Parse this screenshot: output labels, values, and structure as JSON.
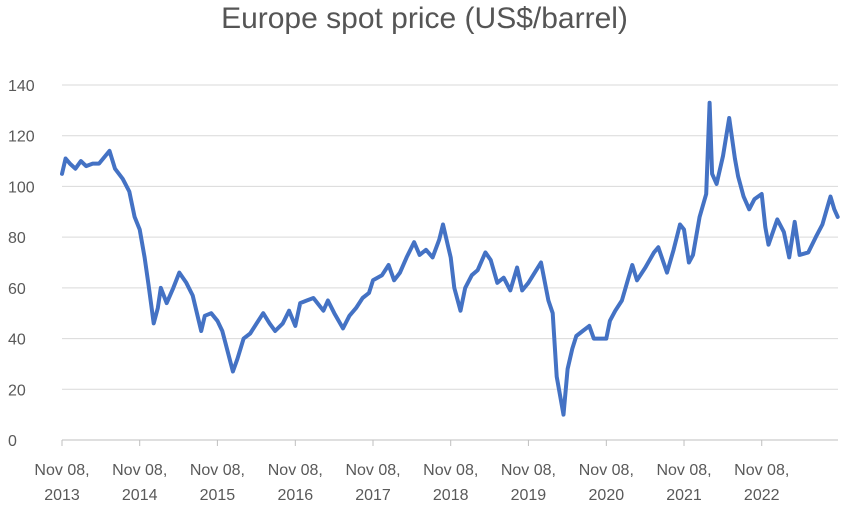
{
  "chart_data": {
    "type": "line",
    "title": "Europe spot price (US$/barrel)",
    "xlabel": "",
    "ylabel": "",
    "ylim": [
      0,
      140
    ],
    "y_ticks": [
      0,
      20,
      40,
      60,
      80,
      100,
      120,
      140
    ],
    "x_ticks": [
      {
        "line1": "Nov 08,",
        "line2": "2013",
        "date": "2013-11-08"
      },
      {
        "line1": "Nov 08,",
        "line2": "2014",
        "date": "2014-11-08"
      },
      {
        "line1": "Nov 08,",
        "line2": "2015",
        "date": "2015-11-08"
      },
      {
        "line1": "Nov 08,",
        "line2": "2016",
        "date": "2016-11-08"
      },
      {
        "line1": "Nov 08,",
        "line2": "2017",
        "date": "2017-11-08"
      },
      {
        "line1": "Nov 08,",
        "line2": "2018",
        "date": "2018-11-08"
      },
      {
        "line1": "Nov 08,",
        "line2": "2019",
        "date": "2019-11-08"
      },
      {
        "line1": "Nov 08,",
        "line2": "2020",
        "date": "2020-11-08"
      },
      {
        "line1": "Nov 08,",
        "line2": "2021",
        "date": "2021-11-08"
      },
      {
        "line1": "Nov 08,",
        "line2": "2022",
        "date": "2022-11-08"
      }
    ],
    "grid": "horizontal",
    "legend": "none",
    "line_color": "#4472C4",
    "series": [
      {
        "points": [
          [
            "2013-11-08",
            105
          ],
          [
            "2013-11-25",
            111
          ],
          [
            "2013-12-15",
            109
          ],
          [
            "2014-01-10",
            107
          ],
          [
            "2014-02-05",
            110
          ],
          [
            "2014-03-01",
            108
          ],
          [
            "2014-04-01",
            109
          ],
          [
            "2014-05-01",
            109
          ],
          [
            "2014-06-19",
            114
          ],
          [
            "2014-07-15",
            107
          ],
          [
            "2014-08-20",
            103
          ],
          [
            "2014-09-20",
            98
          ],
          [
            "2014-10-15",
            88
          ],
          [
            "2014-11-08",
            83
          ],
          [
            "2014-12-01",
            72
          ],
          [
            "2014-12-20",
            61
          ],
          [
            "2015-01-13",
            46
          ],
          [
            "2015-02-01",
            52
          ],
          [
            "2015-02-15",
            60
          ],
          [
            "2015-03-15",
            54
          ],
          [
            "2015-04-15",
            60
          ],
          [
            "2015-05-13",
            66
          ],
          [
            "2015-06-15",
            62
          ],
          [
            "2015-07-15",
            57
          ],
          [
            "2015-08-24",
            43
          ],
          [
            "2015-09-10",
            49
          ],
          [
            "2015-10-10",
            50
          ],
          [
            "2015-11-08",
            47
          ],
          [
            "2015-12-01",
            43
          ],
          [
            "2015-12-20",
            37
          ],
          [
            "2016-01-20",
            27
          ],
          [
            "2016-02-10",
            32
          ],
          [
            "2016-03-10",
            40
          ],
          [
            "2016-04-10",
            42
          ],
          [
            "2016-05-10",
            46
          ],
          [
            "2016-06-10",
            50
          ],
          [
            "2016-07-10",
            46
          ],
          [
            "2016-08-05",
            43
          ],
          [
            "2016-09-10",
            46
          ],
          [
            "2016-10-10",
            51
          ],
          [
            "2016-11-08",
            45
          ],
          [
            "2016-12-01",
            54
          ],
          [
            "2017-01-01",
            55
          ],
          [
            "2017-02-01",
            56
          ],
          [
            "2017-03-20",
            51
          ],
          [
            "2017-04-10",
            55
          ],
          [
            "2017-05-10",
            50
          ],
          [
            "2017-06-20",
            44
          ],
          [
            "2017-07-20",
            49
          ],
          [
            "2017-08-20",
            52
          ],
          [
            "2017-09-20",
            56
          ],
          [
            "2017-10-20",
            58
          ],
          [
            "2017-11-08",
            63
          ],
          [
            "2017-12-20",
            65
          ],
          [
            "2018-01-20",
            69
          ],
          [
            "2018-02-15",
            63
          ],
          [
            "2018-03-15",
            66
          ],
          [
            "2018-04-15",
            72
          ],
          [
            "2018-05-20",
            78
          ],
          [
            "2018-06-15",
            73
          ],
          [
            "2018-07-15",
            75
          ],
          [
            "2018-08-15",
            72
          ],
          [
            "2018-09-15",
            79
          ],
          [
            "2018-10-03",
            85
          ],
          [
            "2018-10-25",
            77
          ],
          [
            "2018-11-08",
            72
          ],
          [
            "2018-11-25",
            60
          ],
          [
            "2018-12-24",
            51
          ],
          [
            "2019-01-15",
            60
          ],
          [
            "2019-02-15",
            65
          ],
          [
            "2019-03-15",
            67
          ],
          [
            "2019-04-20",
            74
          ],
          [
            "2019-05-15",
            71
          ],
          [
            "2019-06-15",
            62
          ],
          [
            "2019-07-15",
            64
          ],
          [
            "2019-08-15",
            59
          ],
          [
            "2019-09-16",
            68
          ],
          [
            "2019-10-10",
            59
          ],
          [
            "2019-11-08",
            62
          ],
          [
            "2019-12-15",
            67
          ],
          [
            "2020-01-06",
            70
          ],
          [
            "2020-02-10",
            55
          ],
          [
            "2020-03-01",
            50
          ],
          [
            "2020-03-20",
            25
          ],
          [
            "2020-04-21",
            10
          ],
          [
            "2020-05-10",
            28
          ],
          [
            "2020-06-01",
            36
          ],
          [
            "2020-06-20",
            41
          ],
          [
            "2020-07-20",
            43
          ],
          [
            "2020-08-20",
            45
          ],
          [
            "2020-09-10",
            40
          ],
          [
            "2020-10-10",
            40
          ],
          [
            "2020-11-08",
            40
          ],
          [
            "2020-11-25",
            47
          ],
          [
            "2020-12-20",
            51
          ],
          [
            "2021-01-20",
            55
          ],
          [
            "2021-02-20",
            64
          ],
          [
            "2021-03-10",
            69
          ],
          [
            "2021-04-01",
            63
          ],
          [
            "2021-05-10",
            68
          ],
          [
            "2021-06-20",
            74
          ],
          [
            "2021-07-10",
            76
          ],
          [
            "2021-08-20",
            66
          ],
          [
            "2021-09-20",
            75
          ],
          [
            "2021-10-20",
            85
          ],
          [
            "2021-11-08",
            83
          ],
          [
            "2021-12-01",
            70
          ],
          [
            "2021-12-20",
            73
          ],
          [
            "2022-01-20",
            88
          ],
          [
            "2022-02-20",
            97
          ],
          [
            "2022-03-08",
            133
          ],
          [
            "2022-03-20",
            105
          ],
          [
            "2022-04-10",
            101
          ],
          [
            "2022-05-10",
            112
          ],
          [
            "2022-06-08",
            127
          ],
          [
            "2022-07-05",
            111
          ],
          [
            "2022-07-20",
            104
          ],
          [
            "2022-08-15",
            96
          ],
          [
            "2022-09-10",
            91
          ],
          [
            "2022-10-05",
            95
          ],
          [
            "2022-11-08",
            97
          ],
          [
            "2022-11-25",
            84
          ],
          [
            "2022-12-10",
            77
          ],
          [
            "2023-01-20",
            87
          ],
          [
            "2023-02-20",
            82
          ],
          [
            "2023-03-17",
            72
          ],
          [
            "2023-04-12",
            86
          ],
          [
            "2023-05-05",
            73
          ],
          [
            "2023-06-15",
            74
          ],
          [
            "2023-07-20",
            80
          ],
          [
            "2023-08-20",
            85
          ],
          [
            "2023-09-20",
            94
          ],
          [
            "2023-09-27",
            96
          ],
          [
            "2023-10-15",
            91
          ],
          [
            "2023-10-31",
            88
          ]
        ]
      }
    ]
  }
}
